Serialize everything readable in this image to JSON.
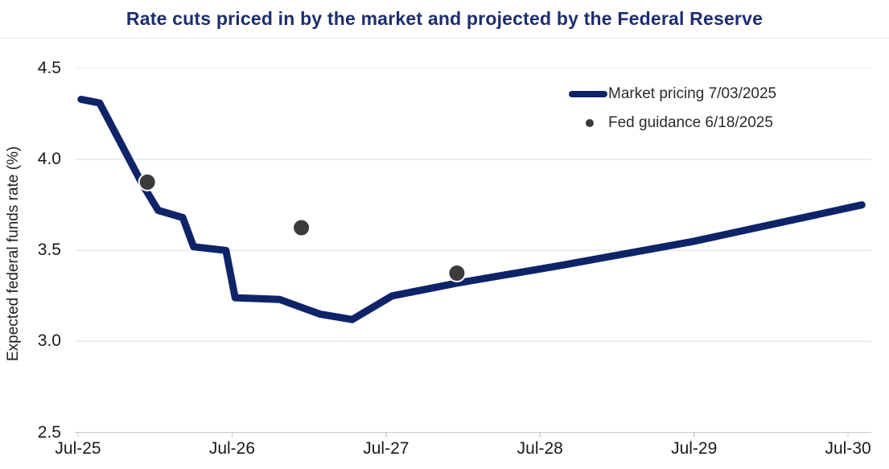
{
  "chart_data": {
    "type": "line",
    "title": "Rate cuts priced in by the market and projected by the Federal Reserve",
    "ylabel": "Expected federal funds rate (%)",
    "ylim": [
      2.5,
      4.5
    ],
    "yticks": [
      {
        "label": "4.5",
        "value": 4.5
      },
      {
        "label": "4.0",
        "value": 4.0
      },
      {
        "label": "3.5",
        "value": 3.5
      },
      {
        "label": "3.0",
        "value": 3.0
      },
      {
        "label": "2.5",
        "value": 2.5
      }
    ],
    "x_unit": "years since Jul-2025",
    "xlim": [
      -0.021,
      5.151
    ],
    "xticks": [
      {
        "label": "Jul-25",
        "t": 0
      },
      {
        "label": "Jul-26",
        "t": 1
      },
      {
        "label": "Jul-27",
        "t": 2
      },
      {
        "label": "Jul-28",
        "t": 3
      },
      {
        "label": "Jul-29",
        "t": 4
      },
      {
        "label": "Jul-30",
        "t": 5
      }
    ],
    "grid": "horizontal",
    "legend_position": "top-right",
    "series": [
      {
        "name": "Market pricing 7/03/2025",
        "type": "line",
        "color": "#0f2468",
        "points": [
          [
            0.02,
            4.33
          ],
          [
            0.14,
            4.31
          ],
          [
            0.42,
            3.86
          ],
          [
            0.52,
            3.72
          ],
          [
            0.68,
            3.68
          ],
          [
            0.75,
            3.52
          ],
          [
            0.96,
            3.5
          ],
          [
            1.02,
            3.24
          ],
          [
            1.31,
            3.23
          ],
          [
            1.57,
            3.15
          ],
          [
            1.78,
            3.12
          ],
          [
            2.04,
            3.25
          ],
          [
            2.46,
            3.32
          ],
          [
            3.15,
            3.42
          ],
          [
            4.0,
            3.55
          ],
          [
            5.09,
            3.75
          ]
        ]
      },
      {
        "name": "Fed guidance 6/18/2025",
        "type": "scatter",
        "color": "#3b3b3b",
        "points": [
          [
            0.45,
            3.875
          ],
          [
            1.45,
            3.625
          ],
          [
            2.46,
            3.375
          ]
        ]
      }
    ]
  },
  "colors": {
    "accent_navy": "#0f2468",
    "title_navy": "#1c2e6e",
    "dot_gray": "#3b3b3b"
  }
}
